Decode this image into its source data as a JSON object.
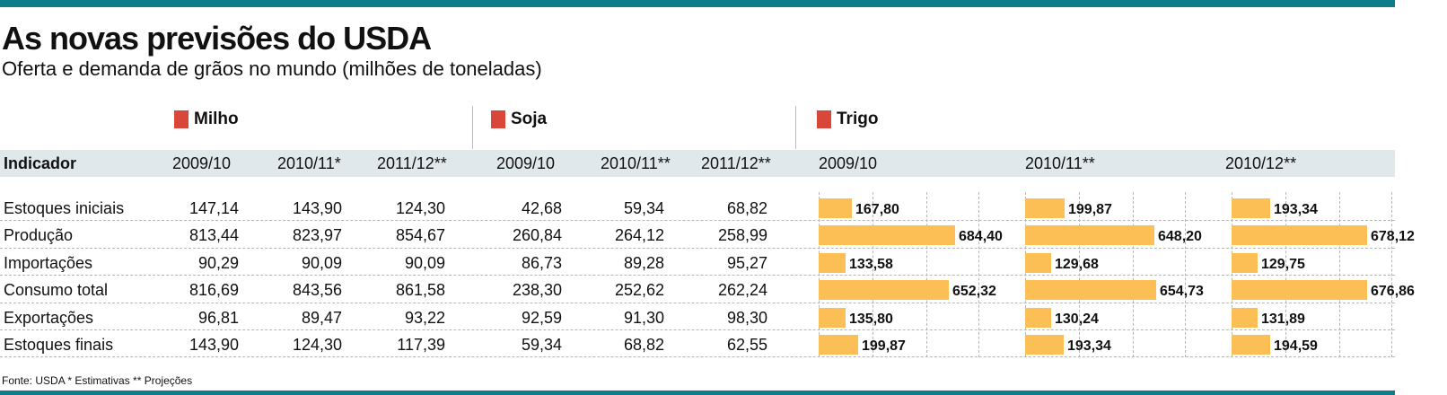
{
  "title": "As novas previsões do USDA",
  "subtitle": "Oferta e demanda de grãos no mundo (milhões de toneladas)",
  "source": "Fonte: USDA * Estimativas ** Projeções",
  "colors": {
    "accent_bar": "#0e7c8a",
    "header_band": "#e1e8eb",
    "legend_square": "#d9473a",
    "bar_fill": "#fbbf55"
  },
  "sections": {
    "milho": "Milho",
    "soja": "Soja",
    "trigo": "Trigo"
  },
  "header": {
    "indicator": "Indicador",
    "milho_years": [
      "2009/10",
      "2010/11*",
      "2011/12**"
    ],
    "soja_years": [
      "2009/10",
      "2010/11**",
      "2011/12**"
    ],
    "trigo_years": [
      "2009/10",
      "2010/11**",
      "2010/12**"
    ]
  },
  "rows": [
    {
      "indicador": "Estoques iniciais",
      "milho": [
        "147,14",
        "143,90",
        "124,30"
      ],
      "soja": [
        "42,68",
        "59,34",
        "68,82"
      ],
      "trigo": [
        "167,80",
        "199,87",
        "193,34"
      ]
    },
    {
      "indicador": "Produção",
      "milho": [
        "813,44",
        "823,97",
        "854,67"
      ],
      "soja": [
        "260,84",
        "264,12",
        "258,99"
      ],
      "trigo": [
        "684,40",
        "648,20",
        "678,12"
      ]
    },
    {
      "indicador": "Importações",
      "milho": [
        "90,29",
        "90,09",
        "90,09"
      ],
      "soja": [
        "86,73",
        "89,28",
        "95,27"
      ],
      "trigo": [
        "133,58",
        "129,68",
        "129,75"
      ]
    },
    {
      "indicador": "Consumo total",
      "milho": [
        "816,69",
        "843,56",
        "861,58"
      ],
      "soja": [
        "238,30",
        "252,62",
        "262,24"
      ],
      "trigo": [
        "652,32",
        "654,73",
        "676,86"
      ]
    },
    {
      "indicador": "Exportações",
      "milho": [
        "96,81",
        "89,47",
        "93,22"
      ],
      "soja": [
        "92,59",
        "91,30",
        "98,30"
      ],
      "trigo": [
        "135,80",
        "130,24",
        "131,89"
      ]
    },
    {
      "indicador": "Estoques finais",
      "milho": [
        "143,90",
        "124,30",
        "117,39"
      ],
      "soja": [
        "59,34",
        "68,82",
        "62,55"
      ],
      "trigo": [
        "199,87",
        "193,34",
        "194,59"
      ]
    }
  ],
  "chart_data": {
    "type": "bar",
    "orientation": "horizontal",
    "title": "Trigo",
    "unit": "milhões de toneladas",
    "categories": [
      "Estoques iniciais",
      "Produção",
      "Importações",
      "Consumo total",
      "Exportações",
      "Estoques finais"
    ],
    "xlim": [
      0,
      800
    ],
    "grid": true,
    "series": [
      {
        "name": "2009/10",
        "values": [
          167.8,
          684.4,
          133.58,
          652.32,
          135.8,
          199.87
        ]
      },
      {
        "name": "2010/11**",
        "values": [
          199.87,
          648.2,
          129.68,
          654.73,
          130.24,
          193.34
        ]
      },
      {
        "name": "2010/12**",
        "values": [
          193.34,
          678.12,
          129.75,
          676.86,
          131.89,
          194.59
        ]
      }
    ]
  }
}
